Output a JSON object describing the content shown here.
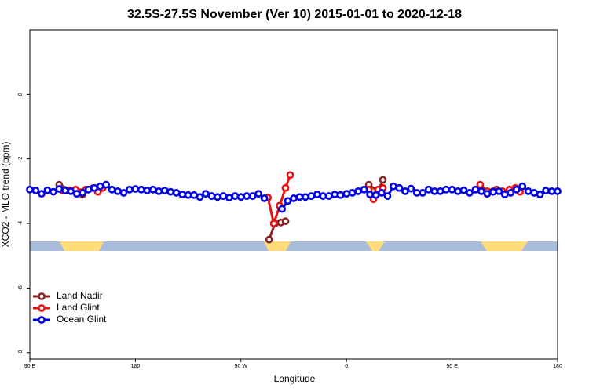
{
  "chart_data": {
    "type": "line",
    "title": "32.5S-27.5S November (Ver 10)   2015-01-01 to 2020-12-18",
    "x_label": "Longitude",
    "y_label": "XCO2 - MLO trend (ppm)",
    "xlim": [
      90,
      540
    ],
    "ylim": [
      -8.2,
      2.0
    ],
    "xticks": [
      {
        "value": 90,
        "label": "90 E"
      },
      180,
      {
        "value": 270,
        "label": "90 W"
      },
      {
        "value": 360,
        "label": "0"
      },
      {
        "value": 450,
        "label": "90 E"
      },
      {
        "value": 540,
        "label": "180"
      }
    ],
    "yticks": [
      -8,
      -6,
      -4,
      -2,
      0
    ],
    "grid": false,
    "legend": "bottomleft",
    "series": [
      {
        "name": "Land Nadir",
        "color": "#8b2525",
        "x": [
          115,
          135,
          200,
          294,
          299,
          304,
          308,
          350,
          379,
          387,
          391,
          450,
          488
        ],
        "values": [
          -2.8,
          -3.1,
          null,
          -4.5,
          -4.0,
          -3.97,
          -3.93,
          null,
          -2.8,
          -3.0,
          -2.65,
          null,
          -2.95
        ]
      },
      {
        "name": "Land Glint",
        "color": "#e81010",
        "x": [
          118,
          124,
          129,
          138,
          144,
          148,
          152,
          200,
          293,
          298,
          303,
          308,
          312,
          350,
          379,
          383,
          387,
          391,
          450,
          474,
          480,
          485,
          493,
          499,
          504,
          508
        ],
        "values": [
          -2.98,
          -2.98,
          -2.95,
          -2.95,
          -2.9,
          -3.02,
          -2.9,
          null,
          -3.2,
          -4.0,
          -3.45,
          -2.9,
          -2.5,
          null,
          -2.95,
          -3.25,
          -2.95,
          -2.9,
          null,
          -2.8,
          -3.0,
          -3.0,
          -3.0,
          -2.95,
          -2.9,
          -3.02
        ]
      },
      {
        "name": "Ocean Glint",
        "color": "#0000e6",
        "x": [
          90,
          95,
          100,
          105,
          110,
          115,
          120,
          125,
          130,
          135,
          140,
          145,
          150,
          155,
          160,
          165,
          170,
          175,
          180,
          185,
          190,
          195,
          200,
          205,
          210,
          215,
          220,
          225,
          230,
          235,
          240,
          245,
          250,
          255,
          260,
          265,
          270,
          275,
          280,
          285,
          290,
          298,
          305,
          310,
          315,
          320,
          325,
          330,
          335,
          340,
          345,
          350,
          355,
          360,
          365,
          370,
          375,
          380,
          385,
          390,
          395,
          400,
          405,
          410,
          415,
          420,
          425,
          430,
          435,
          440,
          445,
          450,
          455,
          460,
          465,
          470,
          475,
          480,
          485,
          490,
          495,
          500,
          505,
          510,
          515,
          520,
          525,
          530,
          535,
          540
        ],
        "values": [
          -2.95,
          -2.98,
          -3.08,
          -2.97,
          -3.02,
          -2.93,
          -2.98,
          -3.0,
          -3.08,
          -3.05,
          -2.95,
          -2.9,
          -2.85,
          -2.8,
          -2.95,
          -3.0,
          -3.05,
          -2.95,
          -2.93,
          -2.95,
          -2.98,
          -2.95,
          -3.0,
          -2.98,
          -3.02,
          -3.05,
          -3.1,
          -3.12,
          -3.12,
          -3.18,
          -3.08,
          -3.15,
          -3.18,
          -3.15,
          -3.2,
          -3.15,
          -3.18,
          -3.15,
          -3.15,
          -3.08,
          -3.22,
          null,
          -3.55,
          -3.3,
          -3.22,
          -3.18,
          -3.18,
          -3.15,
          -3.1,
          -3.15,
          -3.15,
          -3.1,
          -3.12,
          -3.08,
          -3.05,
          -3.0,
          -2.95,
          -3.1,
          -3.12,
          -3.05,
          -3.15,
          -2.85,
          -2.9,
          -3.0,
          -2.92,
          -3.05,
          -3.05,
          -2.95,
          -3.0,
          -3.0,
          -2.95,
          -2.95,
          -3.0,
          -2.97,
          -3.05,
          -2.95,
          -3.0,
          -3.08,
          -3.02,
          -3.0,
          -3.1,
          -3.05,
          -2.95,
          -2.85,
          -3.0,
          -3.05,
          -3.1,
          -2.98,
          -3.0,
          -3.0
        ]
      }
    ]
  }
}
